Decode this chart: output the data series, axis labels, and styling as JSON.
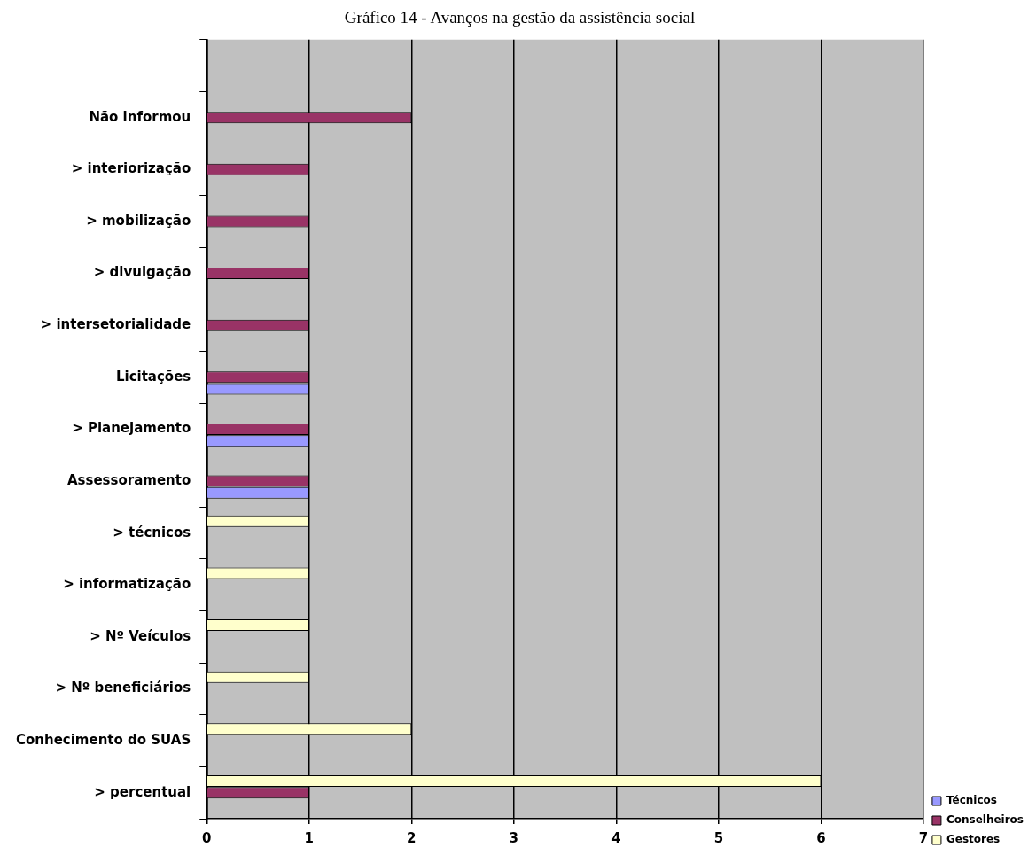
{
  "chart_data": {
    "type": "bar",
    "orientation": "horizontal",
    "title": "Gráfico 14 - Avanços na gestão da assistência social",
    "categories": [
      null,
      "Não informou",
      "> interiorização",
      "> mobilização",
      "> divulgação",
      "> intersetorialidade",
      "Licitações",
      "> Planejamento",
      "Assessoramento",
      "> técnicos",
      "> informatização",
      "> Nº Veículos",
      "> Nº beneficiários",
      "Conhecimento do SUAS",
      "> percentual"
    ],
    "series": [
      {
        "name": "Técnicos",
        "color": "#9999ff",
        "values": [
          null,
          null,
          null,
          null,
          null,
          null,
          1,
          1,
          1,
          null,
          null,
          null,
          null,
          null,
          null
        ]
      },
      {
        "name": "Conselheiros",
        "color": "#993366",
        "values": [
          null,
          2,
          1,
          1,
          1,
          1,
          1,
          1,
          1,
          null,
          null,
          null,
          null,
          null,
          1
        ]
      },
      {
        "name": "Gestores",
        "color": "#ffffcc",
        "values": [
          null,
          null,
          null,
          null,
          null,
          null,
          null,
          null,
          null,
          1,
          1,
          1,
          1,
          2,
          6
        ]
      }
    ],
    "xlim": [
      0,
      7
    ],
    "xticks": [
      0,
      1,
      2,
      3,
      4,
      5,
      6,
      7
    ],
    "grid": "x",
    "legend": "bottom right"
  }
}
